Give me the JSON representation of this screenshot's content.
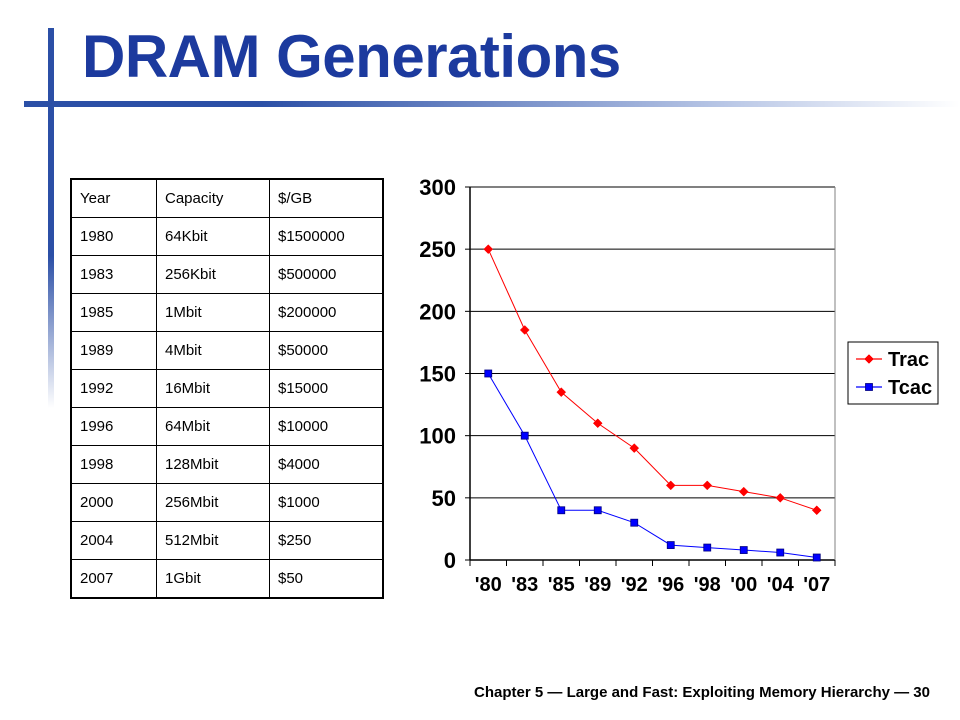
{
  "slide": {
    "title": "DRAM Generations",
    "footer": "Chapter 5 — Large and Fast: Exploiting Memory Hierarchy — 30"
  },
  "table": {
    "headers": [
      "Year",
      "Capacity",
      "$/GB"
    ],
    "rows": [
      [
        "1980",
        "64Kbit",
        "$1500000"
      ],
      [
        "1983",
        "256Kbit",
        "$500000"
      ],
      [
        "1985",
        "1Mbit",
        "$200000"
      ],
      [
        "1989",
        "4Mbit",
        "$50000"
      ],
      [
        "1992",
        "16Mbit",
        "$15000"
      ],
      [
        "1996",
        "64Mbit",
        "$10000"
      ],
      [
        "1998",
        "128Mbit",
        "$4000"
      ],
      [
        "2000",
        "256Mbit",
        "$1000"
      ],
      [
        "2004",
        "512Mbit",
        "$250"
      ],
      [
        "2007",
        "1Gbit",
        "$50"
      ]
    ]
  },
  "chart_data": {
    "type": "line",
    "categories": [
      "'80",
      "'83",
      "'85",
      "'89",
      "'92",
      "'96",
      "'98",
      "'00",
      "'04",
      "'07"
    ],
    "series": [
      {
        "name": "Trac",
        "color": "#ff0000",
        "marker": "diamond",
        "values": [
          250,
          185,
          135,
          110,
          90,
          60,
          60,
          55,
          50,
          40
        ]
      },
      {
        "name": "Tcac",
        "color": "#0000ff",
        "marker": "square",
        "values": [
          150,
          100,
          40,
          40,
          30,
          12,
          10,
          8,
          6,
          2
        ]
      }
    ],
    "yticks": [
      0,
      50,
      100,
      150,
      200,
      250,
      300
    ],
    "ylim": [
      0,
      300
    ],
    "grid": true,
    "legend": "right"
  }
}
